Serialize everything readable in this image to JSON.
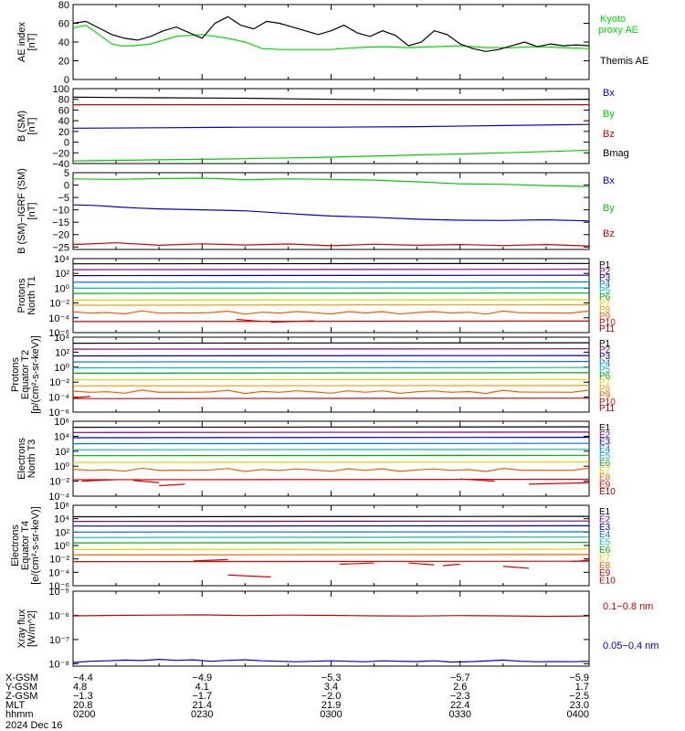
{
  "chart_data": [
    {
      "type": "line",
      "ylabel": [
        "AE index",
        "[nT]"
      ],
      "ylim": [
        0,
        80
      ],
      "yscale": "linear",
      "ytick_labels": [
        "0",
        "20",
        "40",
        "60",
        "80"
      ],
      "ytick_values": [
        0,
        20,
        40,
        60,
        80
      ],
      "series": [
        {
          "name": "Kyoto proxy AE",
          "color": "#00dd00",
          "x": [
            0,
            3,
            6,
            9,
            11,
            14,
            18,
            24,
            30,
            36,
            40,
            44,
            48,
            54,
            60,
            66,
            72,
            78,
            84,
            90,
            96,
            102,
            108,
            114,
            120
          ],
          "y": [
            55,
            58,
            48,
            38,
            36,
            36,
            38,
            46,
            48,
            44,
            40,
            33,
            32,
            32,
            32,
            34,
            35,
            34,
            35,
            36,
            34,
            34,
            35,
            34,
            33
          ]
        },
        {
          "name": "Themis AE",
          "color": "#000000",
          "x": [
            0,
            3,
            6,
            9,
            12,
            15,
            18,
            21,
            24,
            27,
            30,
            33,
            36,
            39,
            42,
            45,
            48,
            51,
            54,
            57,
            60,
            63,
            66,
            69,
            72,
            75,
            78,
            81,
            84,
            87,
            90,
            93,
            96,
            99,
            102,
            105,
            108,
            111,
            114,
            117,
            120
          ],
          "y": [
            60,
            62,
            55,
            48,
            44,
            42,
            46,
            52,
            56,
            50,
            44,
            60,
            67,
            58,
            54,
            62,
            60,
            56,
            52,
            48,
            52,
            58,
            50,
            46,
            52,
            47,
            36,
            40,
            52,
            48,
            38,
            33,
            30,
            32,
            36,
            40,
            35,
            38,
            36,
            37,
            36
          ]
        }
      ]
    },
    {
      "type": "line",
      "ylabel": [
        "B (SM)",
        "[nT]"
      ],
      "ylim": [
        -40,
        100
      ],
      "yscale": "linear",
      "ytick_labels": [
        "−40",
        "−20",
        "0",
        "20",
        "40",
        "60",
        "80",
        "100"
      ],
      "ytick_values": [
        -40,
        -20,
        0,
        20,
        40,
        60,
        80,
        100
      ],
      "series": [
        {
          "name": "Bx",
          "color": "#0000cc",
          "x": [
            0,
            20,
            40,
            60,
            80,
            100,
            120
          ],
          "y": [
            26,
            27,
            28,
            28,
            29,
            31,
            33
          ]
        },
        {
          "name": "By",
          "color": "#00cc00",
          "x": [
            0,
            20,
            40,
            60,
            80,
            100,
            120
          ],
          "y": [
            -35,
            -33,
            -31,
            -28,
            -24,
            -20,
            -15
          ]
        },
        {
          "name": "Bz",
          "color": "#cc0000",
          "x": [
            0,
            20,
            40,
            60,
            80,
            100,
            120
          ],
          "y": [
            70,
            70,
            70,
            70,
            70,
            70,
            70
          ]
        },
        {
          "name": "Bmag",
          "color": "#000000",
          "x": [
            0,
            20,
            40,
            60,
            80,
            100,
            120
          ],
          "y": [
            84,
            83,
            82,
            80,
            79,
            79,
            80
          ]
        }
      ]
    },
    {
      "type": "line",
      "ylabel": [
        "B (SM)−IGRF (SM)",
        "[nT]"
      ],
      "ylim": [
        -26,
        5
      ],
      "yscale": "linear",
      "ytick_labels": [
        "−25",
        "−20",
        "−15",
        "−10",
        "−5",
        "0",
        "5"
      ],
      "ytick_values": [
        -25,
        -20,
        -15,
        -10,
        -5,
        0,
        5
      ],
      "series": [
        {
          "name": "Bx",
          "color": "#0000cc",
          "x": [
            0,
            5,
            10,
            15,
            20,
            30,
            40,
            50,
            55,
            60,
            70,
            80,
            90,
            100,
            110,
            120
          ],
          "y": [
            -8,
            -8.2,
            -8.8,
            -9.3,
            -9.6,
            -10,
            -10.4,
            -11.5,
            -12,
            -12.5,
            -13,
            -13.8,
            -14.2,
            -14.3,
            -14,
            -14.5
          ]
        },
        {
          "name": "By",
          "color": "#00cc00",
          "x": [
            0,
            10,
            20,
            30,
            40,
            50,
            60,
            70,
            80,
            90,
            100,
            110,
            120
          ],
          "y": [
            2.5,
            2.3,
            2.6,
            2.8,
            2.2,
            2.5,
            2.3,
            2.0,
            1.3,
            0.5,
            0.3,
            -0.2,
            -0.6
          ]
        },
        {
          "name": "Bz",
          "color": "#cc0000",
          "x": [
            0,
            10,
            20,
            30,
            40,
            50,
            60,
            70,
            80,
            90,
            100,
            110,
            120
          ],
          "y": [
            -24,
            -23.3,
            -24.3,
            -23.7,
            -24.2,
            -23.8,
            -24.5,
            -23.9,
            -24.3,
            -24,
            -24.4,
            -24,
            -24.6
          ]
        }
      ]
    },
    {
      "type": "line",
      "ylabel": [
        "Protons",
        "North T1"
      ],
      "yscale": "log",
      "ylim_exp": [
        -6,
        4
      ],
      "ytick_labels": [
        "10⁻⁶",
        "10⁻⁴",
        "10⁻²",
        "10⁰",
        "10²",
        "10⁴"
      ],
      "ytick_values": [
        -6,
        -4,
        -2,
        0,
        2,
        4
      ],
      "channels": [
        {
          "name": "P1",
          "color": "#000000",
          "log": 3.3
        },
        {
          "name": "P2",
          "color": "#800080",
          "log": 2.5
        },
        {
          "name": "P3",
          "color": "#0000aa",
          "log": 1.7
        },
        {
          "name": "P4",
          "color": "#0070ff",
          "log": 0.8
        },
        {
          "name": "P5",
          "color": "#00bbbb",
          "log": 0.0
        },
        {
          "name": "P6",
          "color": "#00aa00",
          "log": -0.7
        },
        {
          "name": "P7",
          "color": "#e6d000",
          "log": -1.6
        },
        {
          "name": "P8",
          "color": "#f0a000",
          "log": -2.3
        },
        {
          "name": "P9",
          "color": "#ee6000",
          "log": -3.3,
          "wavy": true
        },
        {
          "name": "P10",
          "color": "#dd0000",
          "log": -4.5,
          "segments": [
            [
              46,
              56,
              -4.6
            ],
            [
              38,
              44,
              -4.2
            ]
          ]
        },
        {
          "name": "P11",
          "color": "#990000"
        }
      ]
    },
    {
      "type": "line",
      "ylabel": [
        "Protons",
        "Equator T2",
        "[p/(cm²-s-sr-keV)]"
      ],
      "yscale": "log",
      "ylim_exp": [
        -6,
        4
      ],
      "ytick_labels": [
        "10⁻⁶",
        "10⁻⁴",
        "10⁻²",
        "10⁰",
        "10²",
        "10⁴"
      ],
      "ytick_values": [
        -6,
        -4,
        -2,
        0,
        2,
        4
      ],
      "channels": [
        {
          "name": "P1",
          "color": "#000000",
          "log": 3.2
        },
        {
          "name": "P2",
          "color": "#800080",
          "log": 2.4
        },
        {
          "name": "P3",
          "color": "#0000aa",
          "log": 1.5
        },
        {
          "name": "P4",
          "color": "#0070ff",
          "log": 0.7
        },
        {
          "name": "P5",
          "color": "#00bbbb",
          "log": -0.1
        },
        {
          "name": "P6",
          "color": "#00aa00",
          "log": -0.8
        },
        {
          "name": "P7",
          "color": "#e6d000",
          "log": -1.7
        },
        {
          "name": "P8",
          "color": "#f0a000",
          "log": -2.5
        },
        {
          "name": "P9",
          "color": "#ee6000",
          "log": -3.3,
          "wavy": true
        },
        {
          "name": "P10",
          "color": "#dd0000",
          "log": -4.2,
          "segments": [
            [
              0,
              4,
              -4.1
            ]
          ]
        },
        {
          "name": "P11",
          "color": "#990000"
        }
      ]
    },
    {
      "type": "line",
      "ylabel": [
        "Electrons",
        "North T3"
      ],
      "yscale": "log",
      "ylim_exp": [
        -4,
        6
      ],
      "ytick_labels": [
        "10⁻⁴",
        "10⁻²",
        "10⁰",
        "10²",
        "10⁴",
        "10⁶"
      ],
      "ytick_values": [
        -4,
        -2,
        0,
        2,
        4,
        6
      ],
      "channels": [
        {
          "name": "E1",
          "color": "#000000",
          "log": 5.2
        },
        {
          "name": "E2",
          "color": "#800080",
          "log": 4.5
        },
        {
          "name": "E3",
          "color": "#0000aa",
          "log": 3.8
        },
        {
          "name": "E4",
          "color": "#0070ff",
          "log": 3.0
        },
        {
          "name": "E5",
          "color": "#00bbbb",
          "log": 2.2
        },
        {
          "name": "E6",
          "color": "#00aa00",
          "log": 1.4
        },
        {
          "name": "E7",
          "color": "#e6d000",
          "log": 0.5
        },
        {
          "name": "E8",
          "color": "#ee6000",
          "log": -0.5,
          "wavy": true
        },
        {
          "name": "E9",
          "color": "#dd0000",
          "log": -1.8,
          "segments": [
            [
              2,
              10,
              -2.0
            ],
            [
              14,
              20,
              -1.9
            ],
            [
              20,
              26,
              -2.6
            ],
            [
              90,
              98,
              -1.7
            ],
            [
              106,
              120,
              -2.4
            ]
          ]
        },
        {
          "name": "E10",
          "color": "#990000"
        }
      ]
    },
    {
      "type": "line",
      "ylabel": [
        "Electrons",
        "Equator T4",
        "[e/(cm²-s-sr-keV)]"
      ],
      "yscale": "log",
      "ylim_exp": [
        -6,
        6
      ],
      "ytick_labels": [
        "10⁻⁶",
        "10⁻⁴",
        "10⁻²",
        "10⁰",
        "10²",
        "10⁴",
        "10⁶"
      ],
      "ytick_values": [
        -6,
        -4,
        -2,
        0,
        2,
        4,
        6
      ],
      "channels": [
        {
          "name": "E1",
          "color": "#000000",
          "log": 4.3
        },
        {
          "name": "E2",
          "color": "#800080",
          "log": 3.6
        },
        {
          "name": "E3",
          "color": "#0000aa",
          "log": 2.9
        },
        {
          "name": "E4",
          "color": "#0070ff",
          "log": 2.0
        },
        {
          "name": "E5",
          "color": "#00bbbb",
          "log": 1.2
        },
        {
          "name": "E6",
          "color": "#00aa00",
          "log": 0.4
        },
        {
          "name": "E7",
          "color": "#e6d000",
          "log": -0.6
        },
        {
          "name": "E8",
          "color": "#ee6000",
          "log": -1.4
        },
        {
          "name": "E9",
          "color": "#dd0000",
          "log": -2.4,
          "segments": [
            [
              28,
              36,
              -2.3
            ],
            [
              36,
              46,
              -4.4
            ],
            [
              62,
              70,
              -2.8
            ],
            [
              78,
              84,
              -2.6
            ],
            [
              86,
              90,
              -3.0
            ],
            [
              100,
              106,
              -3.1
            ],
            [
              116,
              120,
              -2.4
            ]
          ]
        },
        {
          "name": "E10",
          "color": "#990000"
        }
      ]
    },
    {
      "type": "line",
      "ylabel": [
        "Xray flux",
        "[W/m^2]"
      ],
      "yscale": "log",
      "ylim_exp": [
        -8.1,
        -5
      ],
      "ytick_labels": [
        "10⁻⁸",
        "10⁻⁷",
        "10⁻⁶",
        "10⁻⁵"
      ],
      "ytick_values": [
        -8,
        -7,
        -6,
        -5
      ],
      "series": [
        {
          "name": "0.1–0.8 nm",
          "color": "#cc0000",
          "x": [
            0,
            10,
            20,
            30,
            40,
            50,
            60,
            70,
            80,
            90,
            100,
            110,
            120
          ],
          "y": [
            -6.02,
            -6.0,
            -5.99,
            -5.98,
            -6.01,
            -5.99,
            -6.0,
            -6.02,
            -6.03,
            -6.01,
            -6.02,
            -6.04,
            -6.03
          ]
        },
        {
          "name": "0.05–0.4 nm",
          "color": "#0000cc",
          "x": [
            0,
            4,
            8,
            12,
            16,
            20,
            24,
            28,
            32,
            36,
            40,
            44,
            48,
            52,
            56,
            60,
            64,
            68,
            72,
            76,
            80,
            84,
            88,
            92,
            96,
            100,
            104,
            108,
            112,
            116,
            120
          ],
          "y": [
            -7.95,
            -7.9,
            -7.88,
            -7.85,
            -7.87,
            -7.82,
            -7.86,
            -7.84,
            -7.9,
            -7.86,
            -7.84,
            -7.88,
            -7.9,
            -7.92,
            -7.9,
            -7.88,
            -7.9,
            -7.92,
            -7.88,
            -7.9,
            -7.91,
            -7.88,
            -7.93,
            -7.92,
            -7.89,
            -7.85,
            -7.9,
            -7.92,
            -7.91,
            -7.92,
            -7.9
          ]
        }
      ]
    }
  ],
  "axis_table": {
    "rows": [
      {
        "label": "X-GSM",
        "values": [
          "−4.4",
          "−4.9",
          "−5.3",
          "−5.7",
          "−5.9"
        ]
      },
      {
        "label": "Y-GSM",
        "values": [
          "4.8",
          "4.1",
          "3.4",
          "2.6",
          "1.7"
        ]
      },
      {
        "label": "Z-GSM",
        "values": [
          "−1.3",
          "−1.7",
          "−2.0",
          "−2.3",
          "−2.5"
        ]
      },
      {
        "label": "MLT",
        "values": [
          "20.8",
          "21.4",
          "21.9",
          "22.4",
          "23.0"
        ]
      },
      {
        "label": "hhmm",
        "values": [
          "0200",
          "0230",
          "0300",
          "0330",
          "0400"
        ]
      }
    ],
    "date": "2024 Dec 16"
  },
  "legend_labels": {
    "panel1": [
      "Kyoto",
      "proxy AE",
      "Themis AE"
    ],
    "panel2": [
      "Bx",
      "By",
      "Bz",
      "Bmag"
    ],
    "panel3": [
      "Bx",
      "By",
      "Bz"
    ],
    "panel8": [
      "0.1−0.8 nm",
      "0.05−0.4 nm"
    ]
  }
}
